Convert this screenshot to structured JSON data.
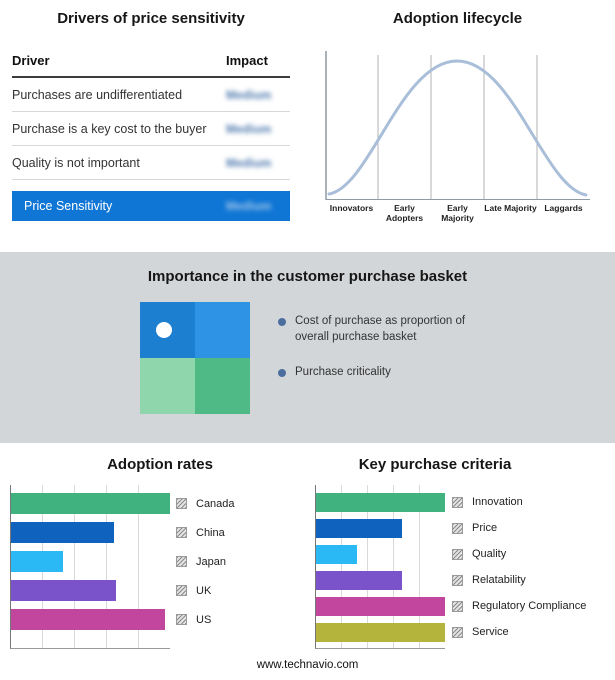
{
  "page": {
    "footer_url": "www.technavio.com"
  },
  "drivers": {
    "title": "Drivers of price sensitivity",
    "header_driver": "Driver",
    "header_impact": "Impact",
    "rows": [
      {
        "driver": "Purchases are undifferentiated",
        "impact": "Medium"
      },
      {
        "driver": "Purchase is a key cost to the buyer",
        "impact": "Medium"
      },
      {
        "driver": "Quality is not important",
        "impact": "Medium"
      }
    ],
    "highlight": {
      "driver": "Price Sensitivity",
      "impact": "Medium"
    },
    "highlight_color": "#1076d5"
  },
  "lifecycle": {
    "title": "Adoption lifecycle",
    "categories": [
      "Innovators",
      "Early Adopters",
      "Early Majority",
      "Late Majority",
      "Laggards"
    ],
    "curve_color": "#a9bed8",
    "axis_color": "#8f9aa3",
    "divider_color": "#b3b3b3"
  },
  "basket": {
    "title": "Importance in the customer purchase basket",
    "legend_items": [
      "Cost of purchase as proportion of overall purchase basket",
      "Purchase criticality"
    ],
    "bullet_color": "#4a6f9e",
    "quadrants": {
      "top_left": "#1d7fd0",
      "top_right": "#2e93e4",
      "bottom_left": "#8fd6ad",
      "bottom_right": "#4fba85"
    }
  },
  "chart_data": [
    {
      "type": "bar",
      "orientation": "horizontal",
      "title": "Adoption rates",
      "categories": [
        "Canada",
        "China",
        "Japan",
        "UK",
        "US"
      ],
      "values": [
        100,
        65,
        33,
        66,
        97
      ],
      "colors": [
        "#3fb27f",
        "#0f63be",
        "#2ab9f4",
        "#7a52c9",
        "#c2459e"
      ],
      "xlim": [
        0,
        100
      ],
      "grid": true,
      "legend_position": "right"
    },
    {
      "type": "bar",
      "orientation": "horizontal",
      "title": "Key purchase criteria",
      "categories": [
        "Innovation",
        "Price",
        "Quality",
        "Relatability",
        "Regulatory Compliance",
        "Service"
      ],
      "values": [
        100,
        67,
        32,
        67,
        100,
        100
      ],
      "colors": [
        "#3fb27f",
        "#0f63be",
        "#2ab9f4",
        "#7a52c9",
        "#c2459e",
        "#b4b43c"
      ],
      "xlim": [
        0,
        100
      ],
      "grid": true,
      "legend_position": "right"
    }
  ]
}
